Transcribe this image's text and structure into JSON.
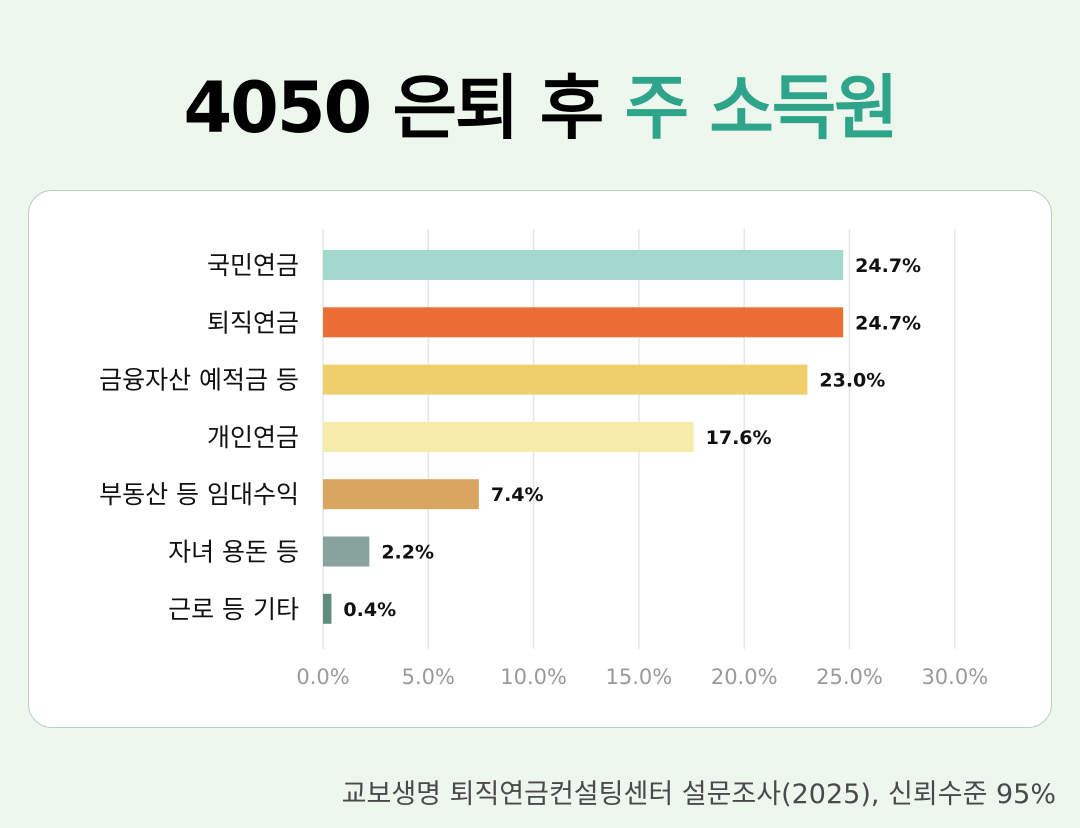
{
  "title": {
    "main": "4050 은퇴 후 ",
    "accent": "주 소득원"
  },
  "chart_data": {
    "type": "bar",
    "orientation": "horizontal",
    "categories": [
      "국민연금",
      "퇴직연금",
      "금융자산 예적금 등",
      "개인연금",
      "부동산 등 임대수익",
      "자녀 용돈 등",
      "근로 등 기타"
    ],
    "values": [
      24.7,
      24.7,
      23.0,
      17.6,
      7.4,
      2.2,
      0.4
    ],
    "value_labels": [
      "24.7%",
      "24.7%",
      "23.0%",
      "17.6%",
      "7.4%",
      "2.2%",
      "0.4%"
    ],
    "colors": [
      "#a2d8cd",
      "#ea6e36",
      "#efcf6b",
      "#f5ecaa",
      "#d9a661",
      "#87a39c",
      "#5e8c7e"
    ],
    "x_ticks": [
      "0.0%",
      "5.0%",
      "10.0%",
      "15.0%",
      "20.0%",
      "25.0%",
      "30.0%"
    ],
    "xlim": [
      0,
      30
    ],
    "grid": "vertical",
    "xlabel": "",
    "ylabel": ""
  },
  "source": "교보생명 퇴직연금컨설팅센터 설문조사(2025), 신뢰수준 95%"
}
